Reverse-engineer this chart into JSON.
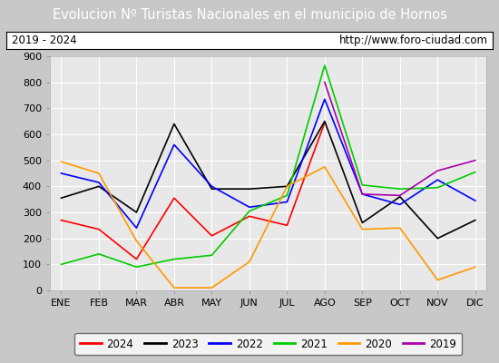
{
  "title": "Evolucion Nº Turistas Nacionales en el municipio de Hornos",
  "subtitle_left": "2019 - 2024",
  "subtitle_right": "http://www.foro-ciudad.com",
  "months": [
    "ENE",
    "FEB",
    "MAR",
    "ABR",
    "MAY",
    "JUN",
    "JUL",
    "AGO",
    "SEP",
    "OCT",
    "NOV",
    "DIC"
  ],
  "ylim": [
    0,
    900
  ],
  "yticks": [
    0,
    100,
    200,
    300,
    400,
    500,
    600,
    700,
    800,
    900
  ],
  "series": {
    "2024": {
      "color": "#ff0000",
      "data": [
        270,
        235,
        120,
        355,
        210,
        285,
        250,
        645,
        null,
        null,
        null,
        null
      ]
    },
    "2023": {
      "color": "#000000",
      "data": [
        355,
        400,
        300,
        640,
        390,
        390,
        400,
        650,
        260,
        360,
        200,
        270
      ]
    },
    "2022": {
      "color": "#0000ff",
      "data": [
        450,
        415,
        240,
        560,
        400,
        320,
        340,
        735,
        370,
        330,
        425,
        345
      ]
    },
    "2021": {
      "color": "#00cc00",
      "data": [
        100,
        140,
        90,
        120,
        135,
        305,
        365,
        865,
        405,
        390,
        395,
        455
      ]
    },
    "2020": {
      "color": "#ff9900",
      "data": [
        495,
        450,
        190,
        10,
        10,
        110,
        400,
        475,
        235,
        240,
        40,
        90
      ]
    },
    "2019": {
      "color": "#aa00aa",
      "data": [
        null,
        null,
        null,
        null,
        null,
        null,
        null,
        800,
        370,
        365,
        460,
        500
      ]
    }
  },
  "title_bg_color": "#4e7bbd",
  "title_text_color": "#ffffff",
  "plot_bg_color": "#e8e8e8",
  "outer_bg_color": "#c8c8c8",
  "grid_color": "#ffffff",
  "title_fontsize": 10.5,
  "subtitle_fontsize": 8.5,
  "tick_fontsize": 8,
  "legend_order": [
    "2024",
    "2023",
    "2022",
    "2021",
    "2020",
    "2019"
  ]
}
